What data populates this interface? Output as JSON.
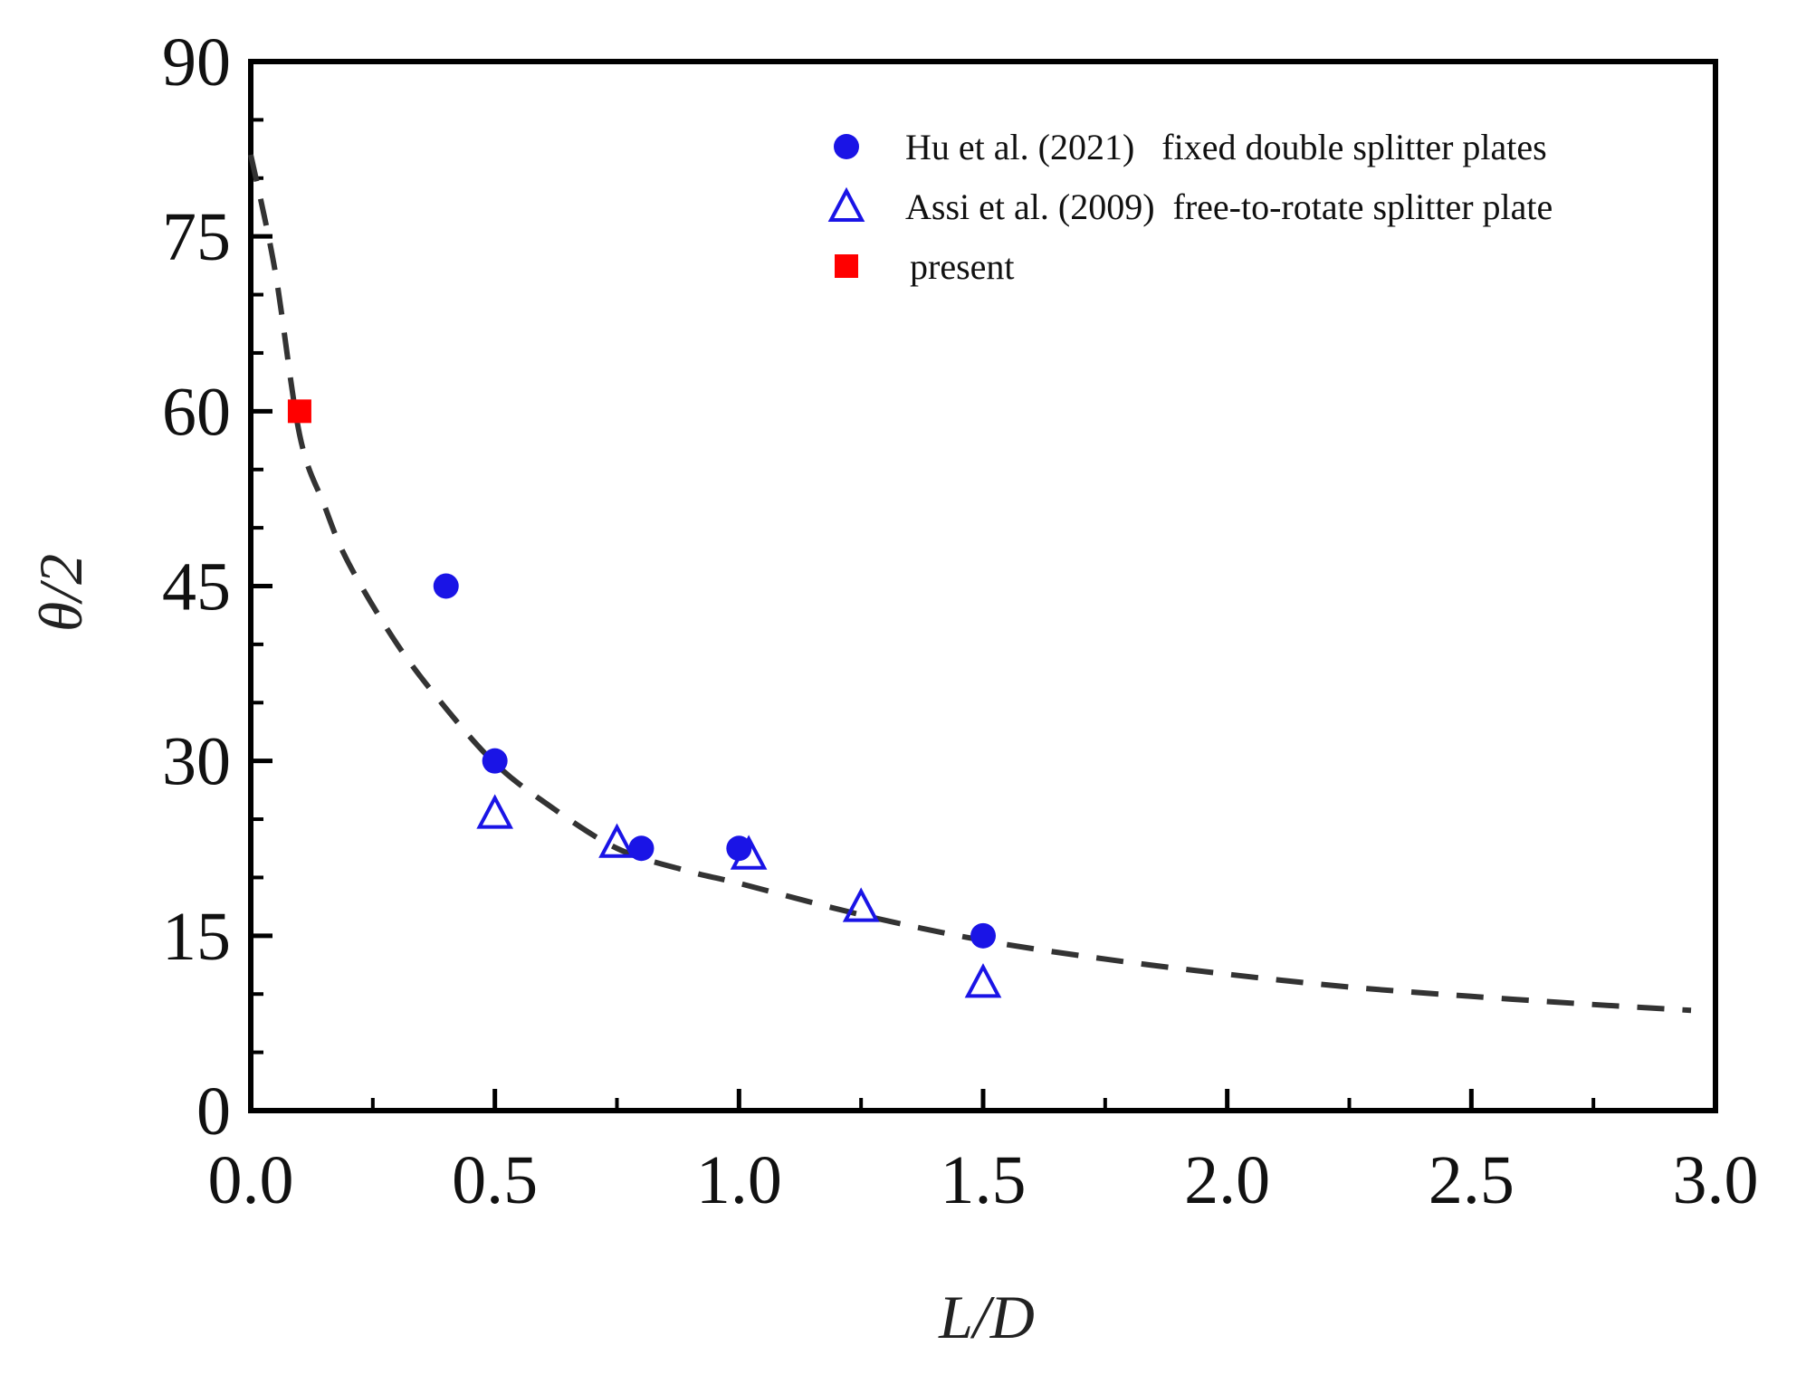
{
  "chart_data": {
    "type": "scatter",
    "title": "",
    "xlabel": "L/D",
    "ylabel": "θ/2",
    "xlim": [
      0.0,
      3.0
    ],
    "ylim": [
      0,
      90
    ],
    "x_ticks": [
      0.0,
      0.5,
      1.0,
      1.5,
      2.0,
      2.5,
      3.0
    ],
    "x_tick_labels": [
      "0.0",
      "0.5",
      "1.0",
      "1.5",
      "2.0",
      "2.5",
      "3.0"
    ],
    "y_ticks": [
      0,
      15,
      30,
      45,
      60,
      75,
      90
    ],
    "y_tick_labels": [
      "0",
      "15",
      "30",
      "45",
      "60",
      "75",
      "90"
    ],
    "grid": false,
    "legend_position": "top-right",
    "series": [
      {
        "name": "Hu et al. (2021)   fixed double splitter plates",
        "marker": "filled-circle",
        "color": "#1a14e6",
        "x": [
          0.4,
          0.5,
          0.8,
          1.0,
          1.5
        ],
        "y": [
          45,
          30,
          22.5,
          22.5,
          15
        ]
      },
      {
        "name": "Assi et al. (2009)  free-to-rotate splitter plate",
        "marker": "open-triangle",
        "color": "#1a14e6",
        "x": [
          0.5,
          0.75,
          1.02,
          1.25,
          1.5
        ],
        "y": [
          25.5,
          23,
          22,
          17.5,
          11
        ]
      },
      {
        "name": "present",
        "marker": "filled-square",
        "color": "#ff0000",
        "x": [
          0.1
        ],
        "y": [
          60
        ]
      }
    ],
    "fit_curve": {
      "name": "fit",
      "style": "dashed",
      "color": "#333333",
      "x": [
        0.0,
        0.05,
        0.1,
        0.15,
        0.2,
        0.3,
        0.4,
        0.5,
        0.6,
        0.75,
        0.9,
        1.0,
        1.25,
        1.5,
        1.75,
        2.0,
        2.25,
        2.5,
        2.75,
        2.95
      ],
      "y": [
        82,
        72,
        58,
        52,
        47,
        40,
        34.5,
        29.8,
        26.5,
        22.5,
        20.5,
        19.5,
        16.8,
        14.6,
        13.0,
        11.7,
        10.6,
        9.8,
        9.1,
        8.6
      ]
    }
  }
}
